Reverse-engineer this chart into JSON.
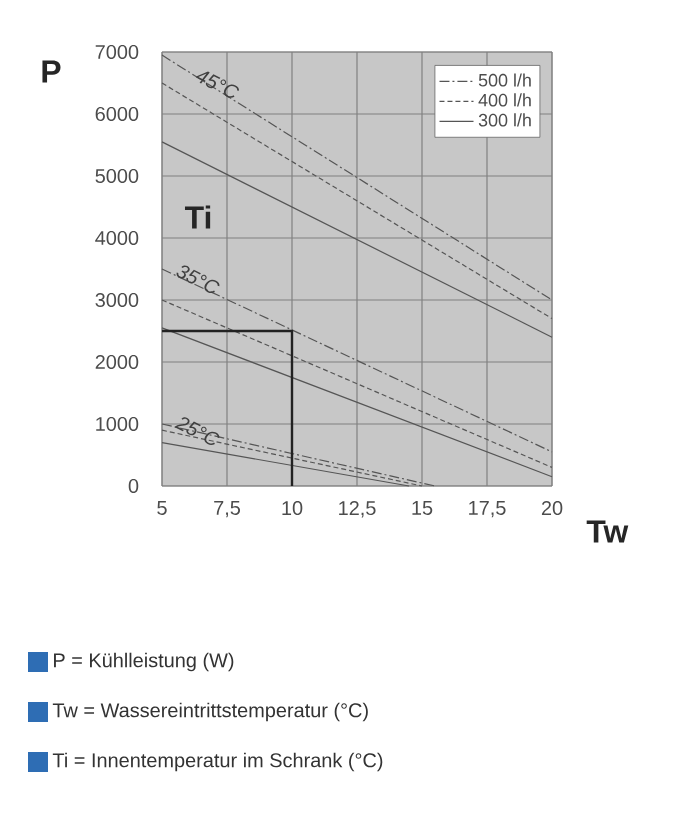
{
  "chart_data": {
    "type": "line",
    "xlabel": "Tw",
    "ylabel": "P",
    "xlim": [
      5,
      20
    ],
    "ylim": [
      0,
      7000
    ],
    "xticks": [
      5,
      {
        "value": 7.5,
        "label": "7,5"
      },
      10,
      {
        "value": 12.5,
        "label": "12,5"
      },
      15,
      {
        "value": 17.5,
        "label": "17,5"
      },
      20
    ],
    "yticks": [
      0,
      1000,
      2000,
      3000,
      4000,
      5000,
      6000,
      7000
    ],
    "grid": true,
    "legend": "top right",
    "series": [
      {
        "name": "500 l/h",
        "color": "#555555",
        "line_style": "dashdot",
        "x": [
          5,
          20
        ],
        "values": [
          6950,
          3000
        ]
      },
      {
        "name": "400 l/h",
        "color": "#555555",
        "line_style": "dashed",
        "x": [
          5,
          20
        ],
        "values": [
          6500,
          2700
        ]
      },
      {
        "name": "300 l/h",
        "color": "#555555",
        "line_style": "solid",
        "x": [
          5,
          20
        ],
        "values": [
          5550,
          2400
        ]
      },
      {
        "color": "#555555",
        "line_style": "dashdot",
        "x": [
          5,
          20
        ],
        "values": [
          3500,
          550
        ]
      },
      {
        "color": "#555555",
        "line_style": "dashed",
        "x": [
          5,
          20
        ],
        "values": [
          3000,
          300
        ]
      },
      {
        "color": "#555555",
        "line_style": "solid",
        "x": [
          5,
          20
        ],
        "values": [
          2550,
          150
        ]
      },
      {
        "color": "#555555",
        "line_style": "dashdot",
        "x": [
          5,
          15.5
        ],
        "values": [
          1000,
          0
        ]
      },
      {
        "color": "#555555",
        "line_style": "dashed",
        "x": [
          5,
          15
        ],
        "values": [
          900,
          0
        ]
      },
      {
        "color": "#555555",
        "line_style": "solid",
        "x": [
          5,
          14.5
        ],
        "values": [
          700,
          0
        ]
      },
      {
        "color": "#222222",
        "line_style": "solid",
        "x": [
          5,
          10,
          10
        ],
        "values": [
          2500,
          2500,
          0
        ]
      }
    ],
    "annotations": [
      "45°C",
      "35°C",
      "25°C",
      "Ti",
      "P = Kühlleistung (W)",
      "Tw = Wassereintrittstemperatur (°C)",
      "Ti = Innentemperatur im Schrank (°C)"
    ]
  }
}
